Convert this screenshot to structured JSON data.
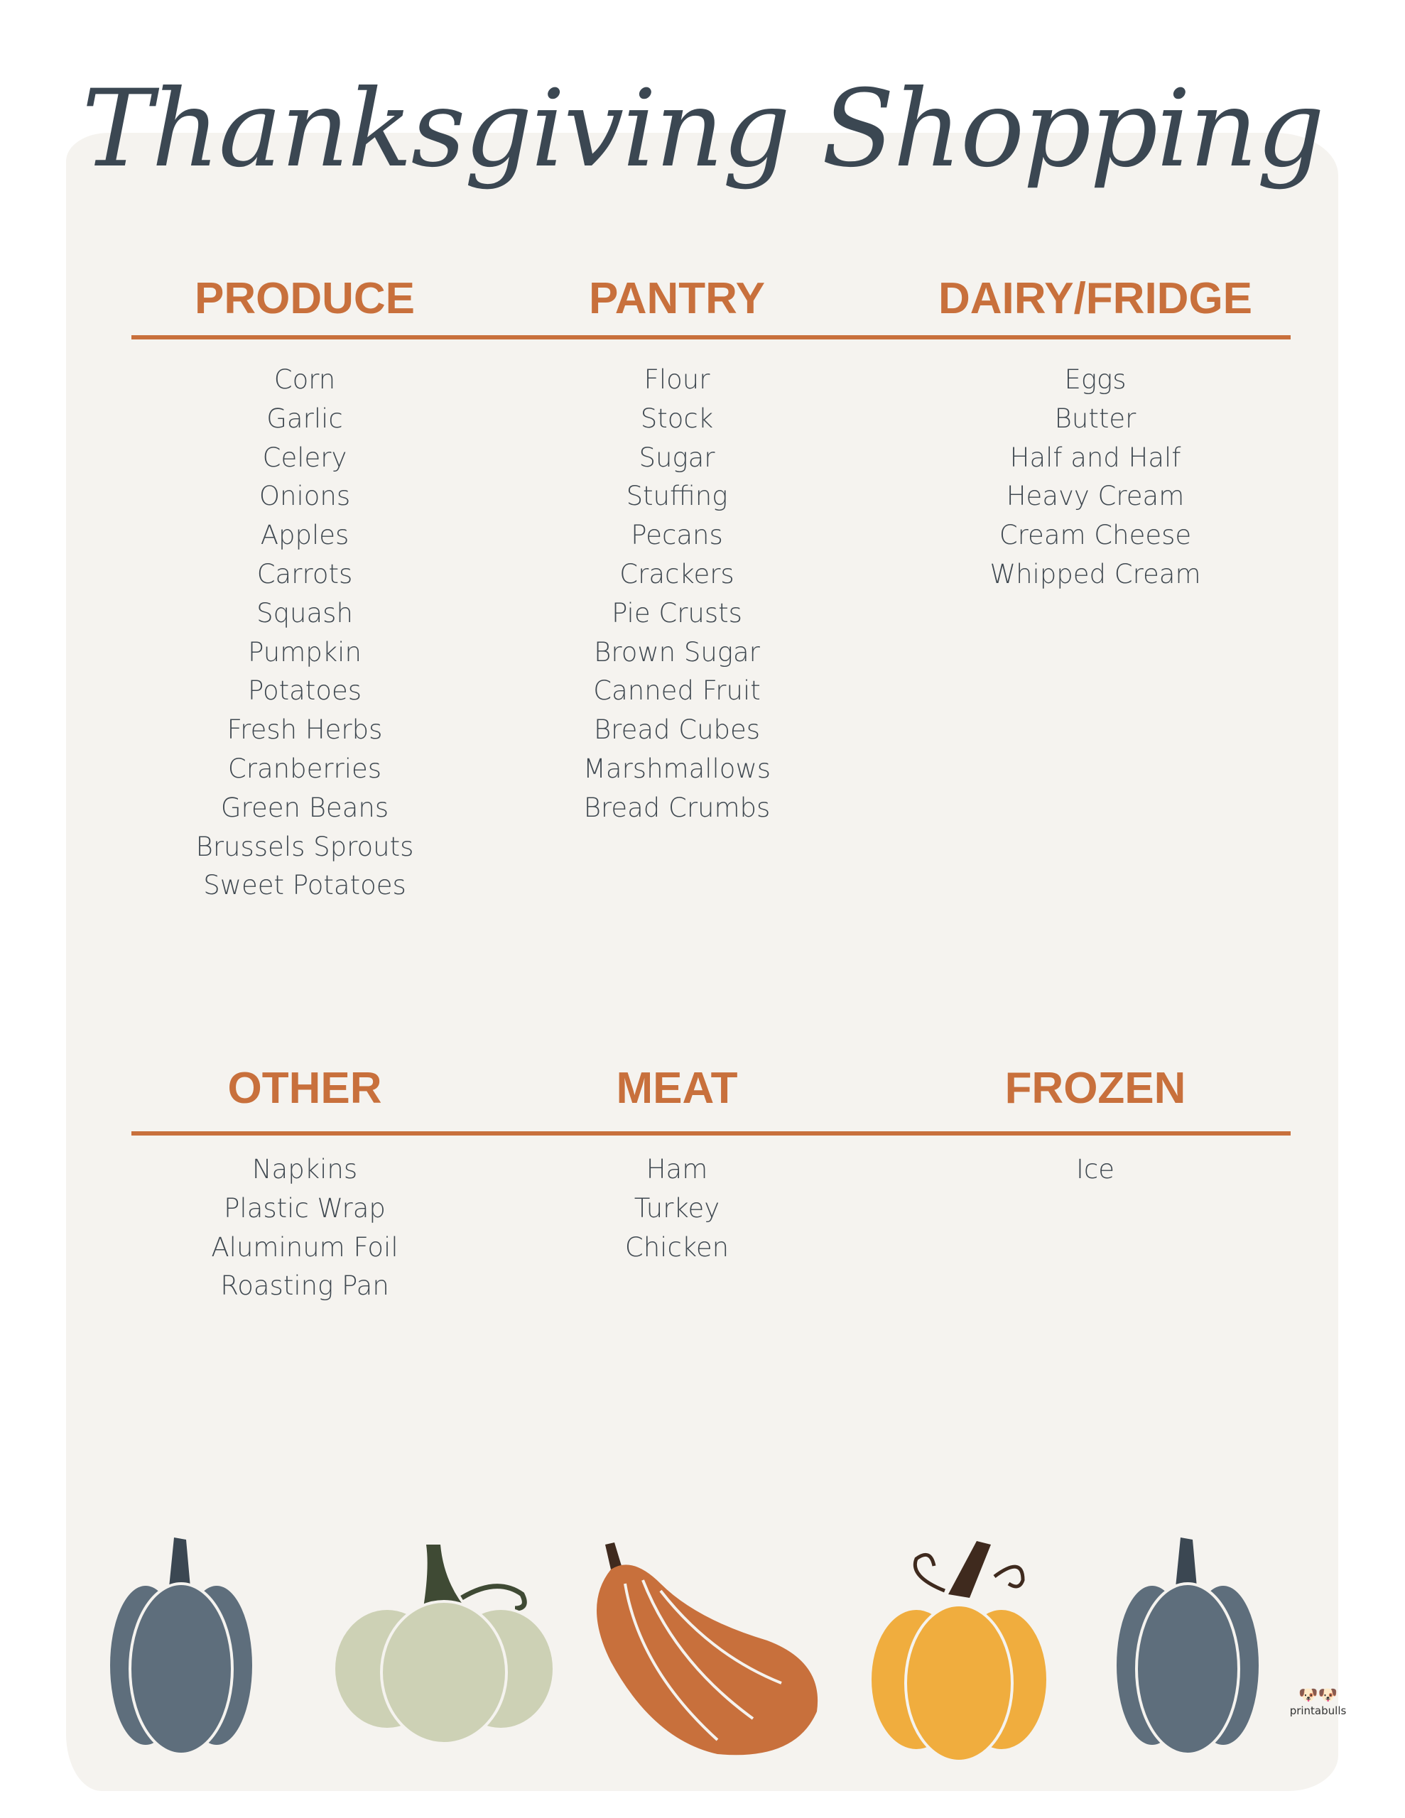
{
  "title": "Thanksgiving Shopping",
  "colors": {
    "accent": "#c8703c",
    "title": "#3b4752",
    "background": "#f5f3ef"
  },
  "sections": [
    {
      "heading": "PRODUCE",
      "items": [
        "Corn",
        "Garlic",
        "Celery",
        "Onions",
        "Apples",
        "Carrots",
        "Squash",
        "Pumpkin",
        "Potatoes",
        "Fresh Herbs",
        "Cranberries",
        "Green Beans",
        "Brussels Sprouts",
        "Sweet Potatoes"
      ]
    },
    {
      "heading": "PANTRY",
      "items": [
        "Flour",
        "Stock",
        "Sugar",
        "Stuffing",
        "Pecans",
        "Crackers",
        "Pie Crusts",
        "Brown Sugar",
        "Canned Fruit",
        "Bread Cubes",
        "Marshmallows",
        "Bread Crumbs"
      ]
    },
    {
      "heading": "DAIRY/FRIDGE",
      "items": [
        "Eggs",
        "Butter",
        "Half and Half",
        "Heavy Cream",
        "Cream Cheese",
        "Whipped Cream"
      ]
    },
    {
      "heading": "OTHER",
      "items": [
        "Napkins",
        "Plastic Wrap",
        "Aluminum Foil",
        "Roasting Pan"
      ]
    },
    {
      "heading": "MEAT",
      "items": [
        "Ham",
        "Turkey",
        "Chicken"
      ]
    },
    {
      "heading": "FROZEN",
      "items": [
        "Ice"
      ]
    }
  ],
  "logo": {
    "text": "printabulls",
    "icon": "french-bulldogs-logo"
  }
}
